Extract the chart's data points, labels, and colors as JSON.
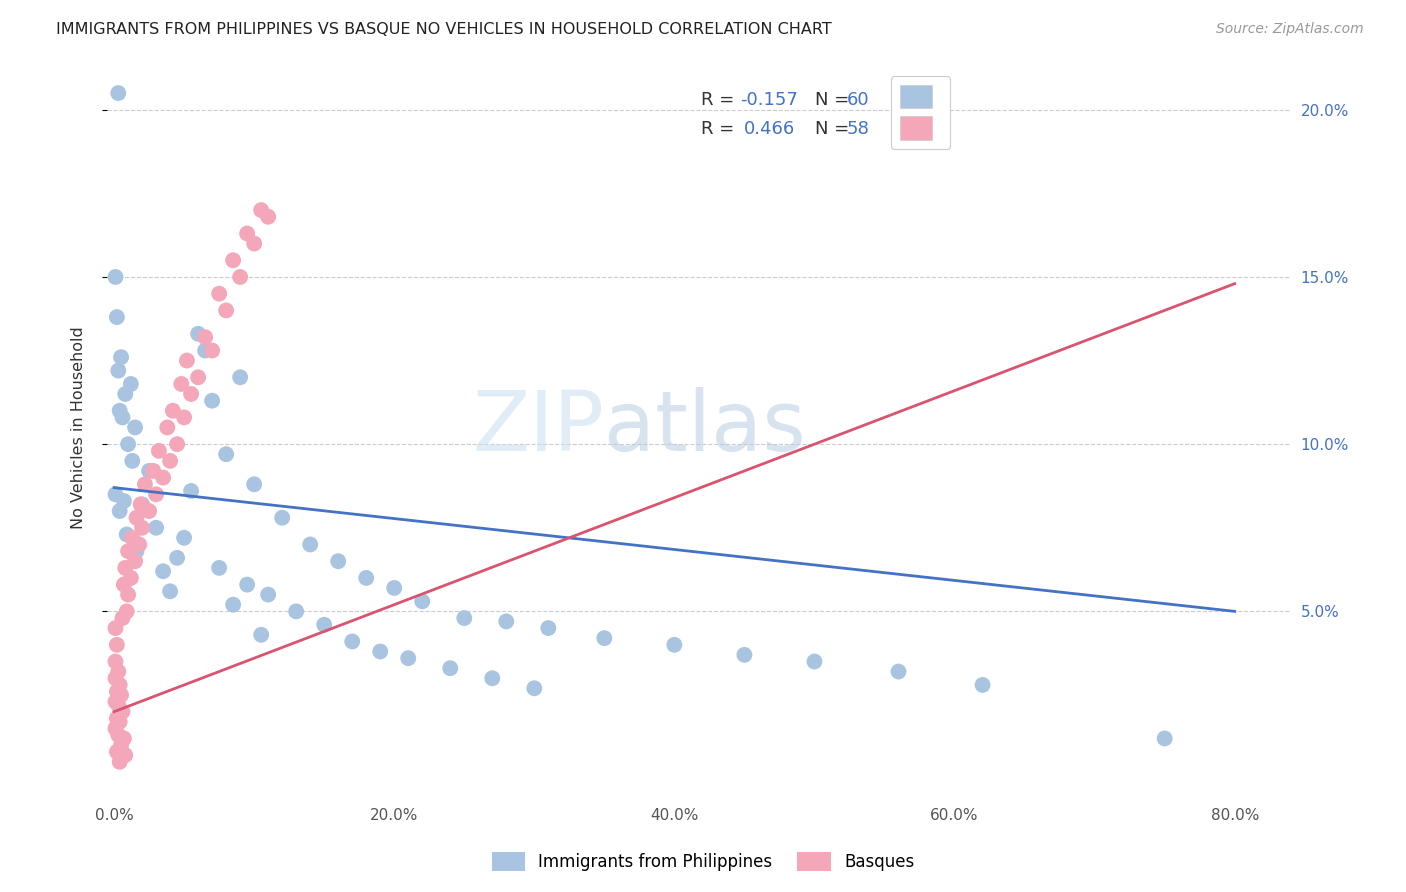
{
  "title": "IMMIGRANTS FROM PHILIPPINES VS BASQUE NO VEHICLES IN HOUSEHOLD CORRELATION CHART",
  "source": "Source: ZipAtlas.com",
  "ylabel": "No Vehicles in Household",
  "watermark_zip": "ZIP",
  "watermark_atlas": "atlas",
  "blue_color": "#a8c4e0",
  "pink_color": "#f4a7b9",
  "blue_line_color": "#4472c4",
  "pink_line_color": "#d9546e",
  "xlim": [
    -0.005,
    0.84
  ],
  "ylim": [
    -0.005,
    0.215
  ],
  "xtick_vals": [
    0.0,
    0.2,
    0.4,
    0.6,
    0.8
  ],
  "ytick_vals": [
    0.05,
    0.1,
    0.15,
    0.2
  ],
  "blue_r": -0.157,
  "blue_n": 60,
  "pink_r": 0.466,
  "pink_n": 58,
  "blue_line_x0": 0.0,
  "blue_line_y0": 0.087,
  "blue_line_x1": 0.8,
  "blue_line_y1": 0.05,
  "pink_line_x0": 0.0,
  "pink_line_y0": 0.02,
  "pink_line_x1": 0.8,
  "pink_line_y1": 0.148,
  "blue_points": [
    [
      0.003,
      0.205
    ],
    [
      0.001,
      0.15
    ],
    [
      0.002,
      0.138
    ],
    [
      0.06,
      0.133
    ],
    [
      0.065,
      0.128
    ],
    [
      0.005,
      0.126
    ],
    [
      0.003,
      0.122
    ],
    [
      0.09,
      0.12
    ],
    [
      0.012,
      0.118
    ],
    [
      0.008,
      0.115
    ],
    [
      0.07,
      0.113
    ],
    [
      0.004,
      0.11
    ],
    [
      0.006,
      0.108
    ],
    [
      0.015,
      0.105
    ],
    [
      0.01,
      0.1
    ],
    [
      0.08,
      0.097
    ],
    [
      0.013,
      0.095
    ],
    [
      0.025,
      0.092
    ],
    [
      0.1,
      0.088
    ],
    [
      0.055,
      0.086
    ],
    [
      0.001,
      0.085
    ],
    [
      0.007,
      0.083
    ],
    [
      0.02,
      0.082
    ],
    [
      0.004,
      0.08
    ],
    [
      0.12,
      0.078
    ],
    [
      0.03,
      0.075
    ],
    [
      0.009,
      0.073
    ],
    [
      0.05,
      0.072
    ],
    [
      0.14,
      0.07
    ],
    [
      0.016,
      0.068
    ],
    [
      0.045,
      0.066
    ],
    [
      0.16,
      0.065
    ],
    [
      0.075,
      0.063
    ],
    [
      0.035,
      0.062
    ],
    [
      0.18,
      0.06
    ],
    [
      0.095,
      0.058
    ],
    [
      0.2,
      0.057
    ],
    [
      0.04,
      0.056
    ],
    [
      0.11,
      0.055
    ],
    [
      0.22,
      0.053
    ],
    [
      0.085,
      0.052
    ],
    [
      0.13,
      0.05
    ],
    [
      0.25,
      0.048
    ],
    [
      0.28,
      0.047
    ],
    [
      0.15,
      0.046
    ],
    [
      0.31,
      0.045
    ],
    [
      0.105,
      0.043
    ],
    [
      0.35,
      0.042
    ],
    [
      0.17,
      0.041
    ],
    [
      0.4,
      0.04
    ],
    [
      0.19,
      0.038
    ],
    [
      0.45,
      0.037
    ],
    [
      0.21,
      0.036
    ],
    [
      0.5,
      0.035
    ],
    [
      0.24,
      0.033
    ],
    [
      0.56,
      0.032
    ],
    [
      0.27,
      0.03
    ],
    [
      0.62,
      0.028
    ],
    [
      0.3,
      0.027
    ],
    [
      0.75,
      0.012
    ]
  ],
  "pink_points": [
    [
      0.001,
      0.045
    ],
    [
      0.002,
      0.04
    ],
    [
      0.001,
      0.035
    ],
    [
      0.003,
      0.032
    ],
    [
      0.001,
      0.03
    ],
    [
      0.004,
      0.028
    ],
    [
      0.002,
      0.026
    ],
    [
      0.005,
      0.025
    ],
    [
      0.001,
      0.023
    ],
    [
      0.003,
      0.022
    ],
    [
      0.006,
      0.02
    ],
    [
      0.002,
      0.018
    ],
    [
      0.004,
      0.017
    ],
    [
      0.001,
      0.015
    ],
    [
      0.003,
      0.013
    ],
    [
      0.007,
      0.012
    ],
    [
      0.005,
      0.01
    ],
    [
      0.002,
      0.008
    ],
    [
      0.008,
      0.007
    ],
    [
      0.004,
      0.005
    ],
    [
      0.009,
      0.05
    ],
    [
      0.006,
      0.048
    ],
    [
      0.01,
      0.055
    ],
    [
      0.007,
      0.058
    ],
    [
      0.012,
      0.06
    ],
    [
      0.008,
      0.063
    ],
    [
      0.015,
      0.065
    ],
    [
      0.01,
      0.068
    ],
    [
      0.018,
      0.07
    ],
    [
      0.013,
      0.072
    ],
    [
      0.02,
      0.075
    ],
    [
      0.016,
      0.078
    ],
    [
      0.025,
      0.08
    ],
    [
      0.019,
      0.082
    ],
    [
      0.03,
      0.085
    ],
    [
      0.022,
      0.088
    ],
    [
      0.035,
      0.09
    ],
    [
      0.028,
      0.092
    ],
    [
      0.04,
      0.095
    ],
    [
      0.032,
      0.098
    ],
    [
      0.045,
      0.1
    ],
    [
      0.038,
      0.105
    ],
    [
      0.05,
      0.108
    ],
    [
      0.042,
      0.11
    ],
    [
      0.055,
      0.115
    ],
    [
      0.048,
      0.118
    ],
    [
      0.06,
      0.12
    ],
    [
      0.052,
      0.125
    ],
    [
      0.07,
      0.128
    ],
    [
      0.065,
      0.132
    ],
    [
      0.08,
      0.14
    ],
    [
      0.075,
      0.145
    ],
    [
      0.09,
      0.15
    ],
    [
      0.085,
      0.155
    ],
    [
      0.1,
      0.16
    ],
    [
      0.095,
      0.163
    ],
    [
      0.11,
      0.168
    ],
    [
      0.105,
      0.17
    ]
  ]
}
